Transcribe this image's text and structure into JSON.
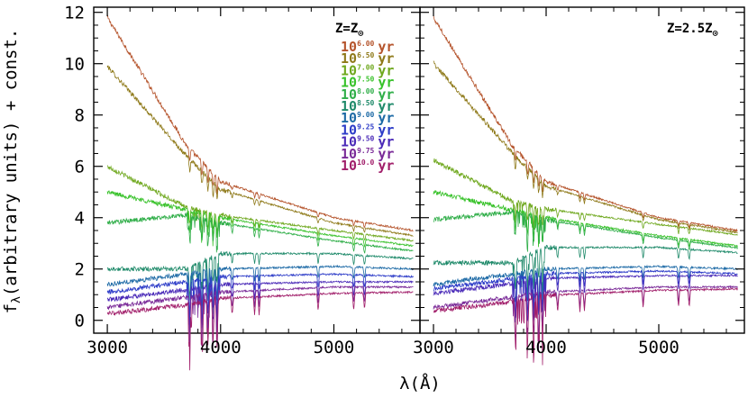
{
  "chart_data": {
    "type": "line",
    "xlabel": "λ(Å)",
    "ylabel": "f_λ(arbitrary units) + const.",
    "xlim": [
      2880,
      5760
    ],
    "ylim": [
      -0.5,
      12.2
    ],
    "xticks": [
      3000,
      4000,
      5000
    ],
    "yticks": [
      0,
      2,
      4,
      6,
      8,
      10,
      12
    ],
    "grid": false,
    "legend_position": "top-right of left panel",
    "panels": [
      {
        "label": "Z=Z⊙",
        "label_base": "Z=Z",
        "label_sub": "⊙"
      },
      {
        "label": "Z=2.5Z⊙",
        "label_base": "Z=2.5Z",
        "label_sub": "⊙"
      }
    ],
    "series": [
      {
        "name": "10^6.00 yr",
        "mantissa": "10",
        "exponent": "6.00",
        "unit": "yr",
        "color": "#b5542c",
        "x": [
          3000,
          3700,
          4000,
          5000,
          5700
        ],
        "y": [
          11.8,
          6.8,
          5.4,
          4.0,
          3.5
        ],
        "start": 3000
      },
      {
        "name": "10^6.50 yr",
        "mantissa": "10",
        "exponent": "6.50",
        "unit": "yr",
        "color": "#8f7a1a",
        "x": [
          3000,
          3700,
          4000,
          5000,
          5700
        ],
        "y": [
          9.9,
          6.4,
          5.1,
          3.8,
          3.3
        ],
        "start": 3000
      },
      {
        "name": "10^7.00 yr",
        "mantissa": "10",
        "exponent": "7.00",
        "unit": "yr",
        "color": "#6fa81e",
        "x": [
          3000,
          3700,
          4000,
          5000,
          5700
        ],
        "y": [
          6.0,
          4.4,
          4.1,
          3.5,
          3.1
        ],
        "start": 3000
      },
      {
        "name": "10^7.50 yr",
        "mantissa": "10",
        "exponent": "7.50",
        "unit": "yr",
        "color": "#38c22a",
        "x": [
          3000,
          3700,
          4000,
          5000,
          5700
        ],
        "y": [
          5.0,
          4.3,
          4.0,
          3.3,
          2.9
        ],
        "start": 3000
      },
      {
        "name": "10^8.00 yr",
        "mantissa": "10",
        "exponent": "8.00",
        "unit": "yr",
        "color": "#2fae48",
        "x": [
          3000,
          3700,
          4000,
          5000,
          5700
        ],
        "y": [
          3.8,
          4.1,
          3.8,
          3.1,
          2.7
        ],
        "start": 3000
      },
      {
        "name": "10^8.50 yr",
        "mantissa": "10",
        "exponent": "8.50",
        "unit": "yr",
        "color": "#1f8a6a",
        "x": [
          3000,
          3700,
          4000,
          5000,
          5700
        ],
        "y": [
          2.0,
          2.0,
          2.6,
          2.6,
          2.4
        ],
        "start": 3000
      },
      {
        "name": "10^9.00 yr",
        "mantissa": "10",
        "exponent": "9.00",
        "unit": "yr",
        "color": "#1d6aa6",
        "x": [
          3000,
          3700,
          4000,
          5000,
          5700
        ],
        "y": [
          1.4,
          1.8,
          2.0,
          2.1,
          2.0
        ],
        "start": 3000
      },
      {
        "name": "10^9.25 yr",
        "mantissa": "10",
        "exponent": "9.25",
        "unit": "yr",
        "color": "#2d3cc8",
        "x": [
          3000,
          3700,
          4000,
          5000,
          5700
        ],
        "y": [
          1.1,
          1.5,
          1.7,
          1.8,
          1.7
        ],
        "start": 3000
      },
      {
        "name": "10^9.50 yr",
        "mantissa": "10",
        "exponent": "9.50",
        "unit": "yr",
        "color": "#4a2ab8",
        "x": [
          3000,
          3700,
          4000,
          5000,
          5700
        ],
        "y": [
          0.8,
          1.2,
          1.4,
          1.5,
          1.5
        ],
        "start": 3000
      },
      {
        "name": "10^9.75 yr",
        "mantissa": "10",
        "exponent": "9.75",
        "unit": "yr",
        "color": "#7a2a98",
        "x": [
          3000,
          3700,
          4000,
          5000,
          5700
        ],
        "y": [
          0.5,
          0.9,
          1.1,
          1.3,
          1.3
        ],
        "start": 3000
      },
      {
        "name": "10^10.0 yr",
        "mantissa": "10",
        "exponent": "10.0",
        "unit": "yr",
        "color": "#a11e6a",
        "x": [
          3000,
          3700,
          4000,
          5000,
          5700
        ],
        "y": [
          0.25,
          0.6,
          0.85,
          1.05,
          1.1
        ],
        "start": 3000
      }
    ],
    "absorption_lines": [
      3727,
      3835,
      3889,
      3934,
      3968,
      4102,
      4300,
      4340,
      4861,
      5175,
      5270
    ]
  }
}
